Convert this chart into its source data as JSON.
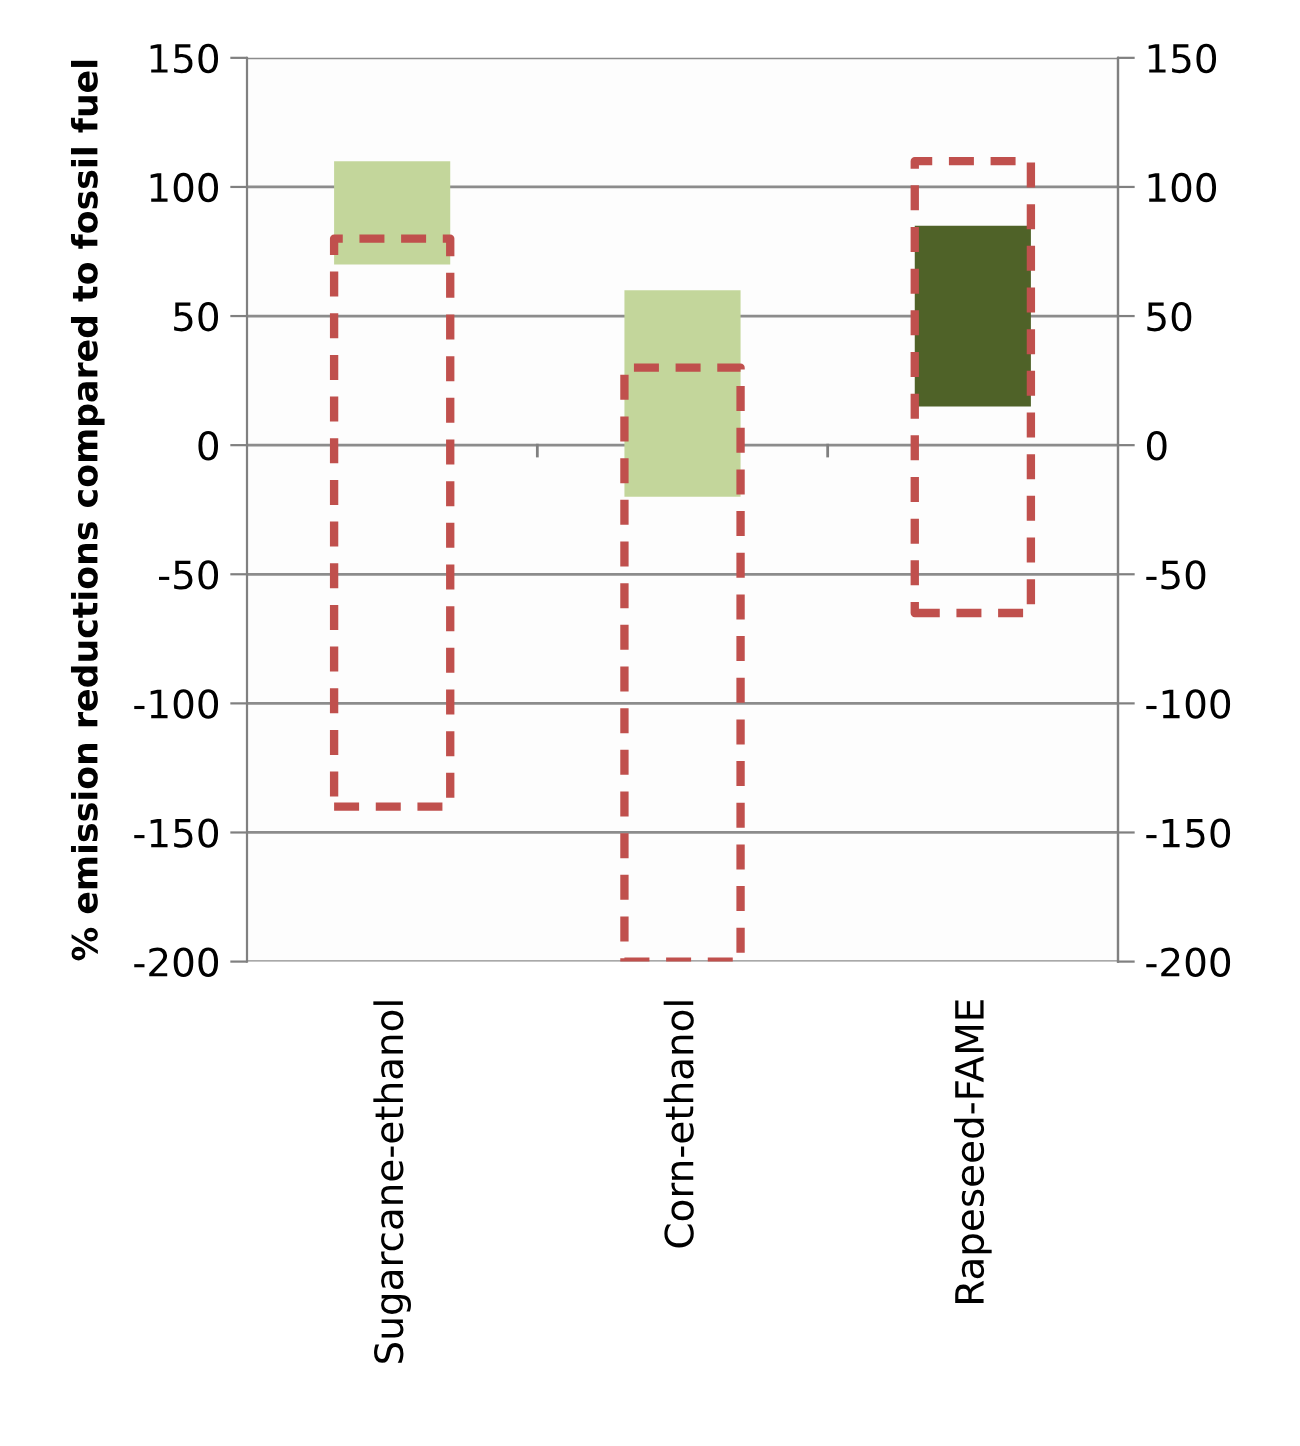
{
  "chart_data": {
    "type": "bar",
    "ylabel": "% emission reductions compared to fossil fuel",
    "categories": [
      "Sugarcane-ethanol",
      "Corn-ethanol",
      "Rapeseed-FAME"
    ],
    "series": [
      {
        "colors": [
          "#c3d69b",
          "#c3d69b",
          "#4f6228"
        ],
        "base": [
          70,
          -20,
          15
        ],
        "values": [
          40,
          80,
          70
        ]
      },
      {
        "color": "#c0504d",
        "line_style": "dashed",
        "base": [
          -140,
          -200,
          -65
        ],
        "values": [
          220,
          230,
          175
        ]
      }
    ],
    "ylim": [
      -200,
      150
    ],
    "yticks": [
      -200,
      -150,
      -100,
      -50,
      0,
      50,
      100,
      150
    ],
    "y2lim": [
      -200,
      150
    ],
    "y2ticks": [
      -200,
      -150,
      -100,
      -50,
      0,
      50,
      100,
      150
    ],
    "grid": "y",
    "legend": false
  }
}
